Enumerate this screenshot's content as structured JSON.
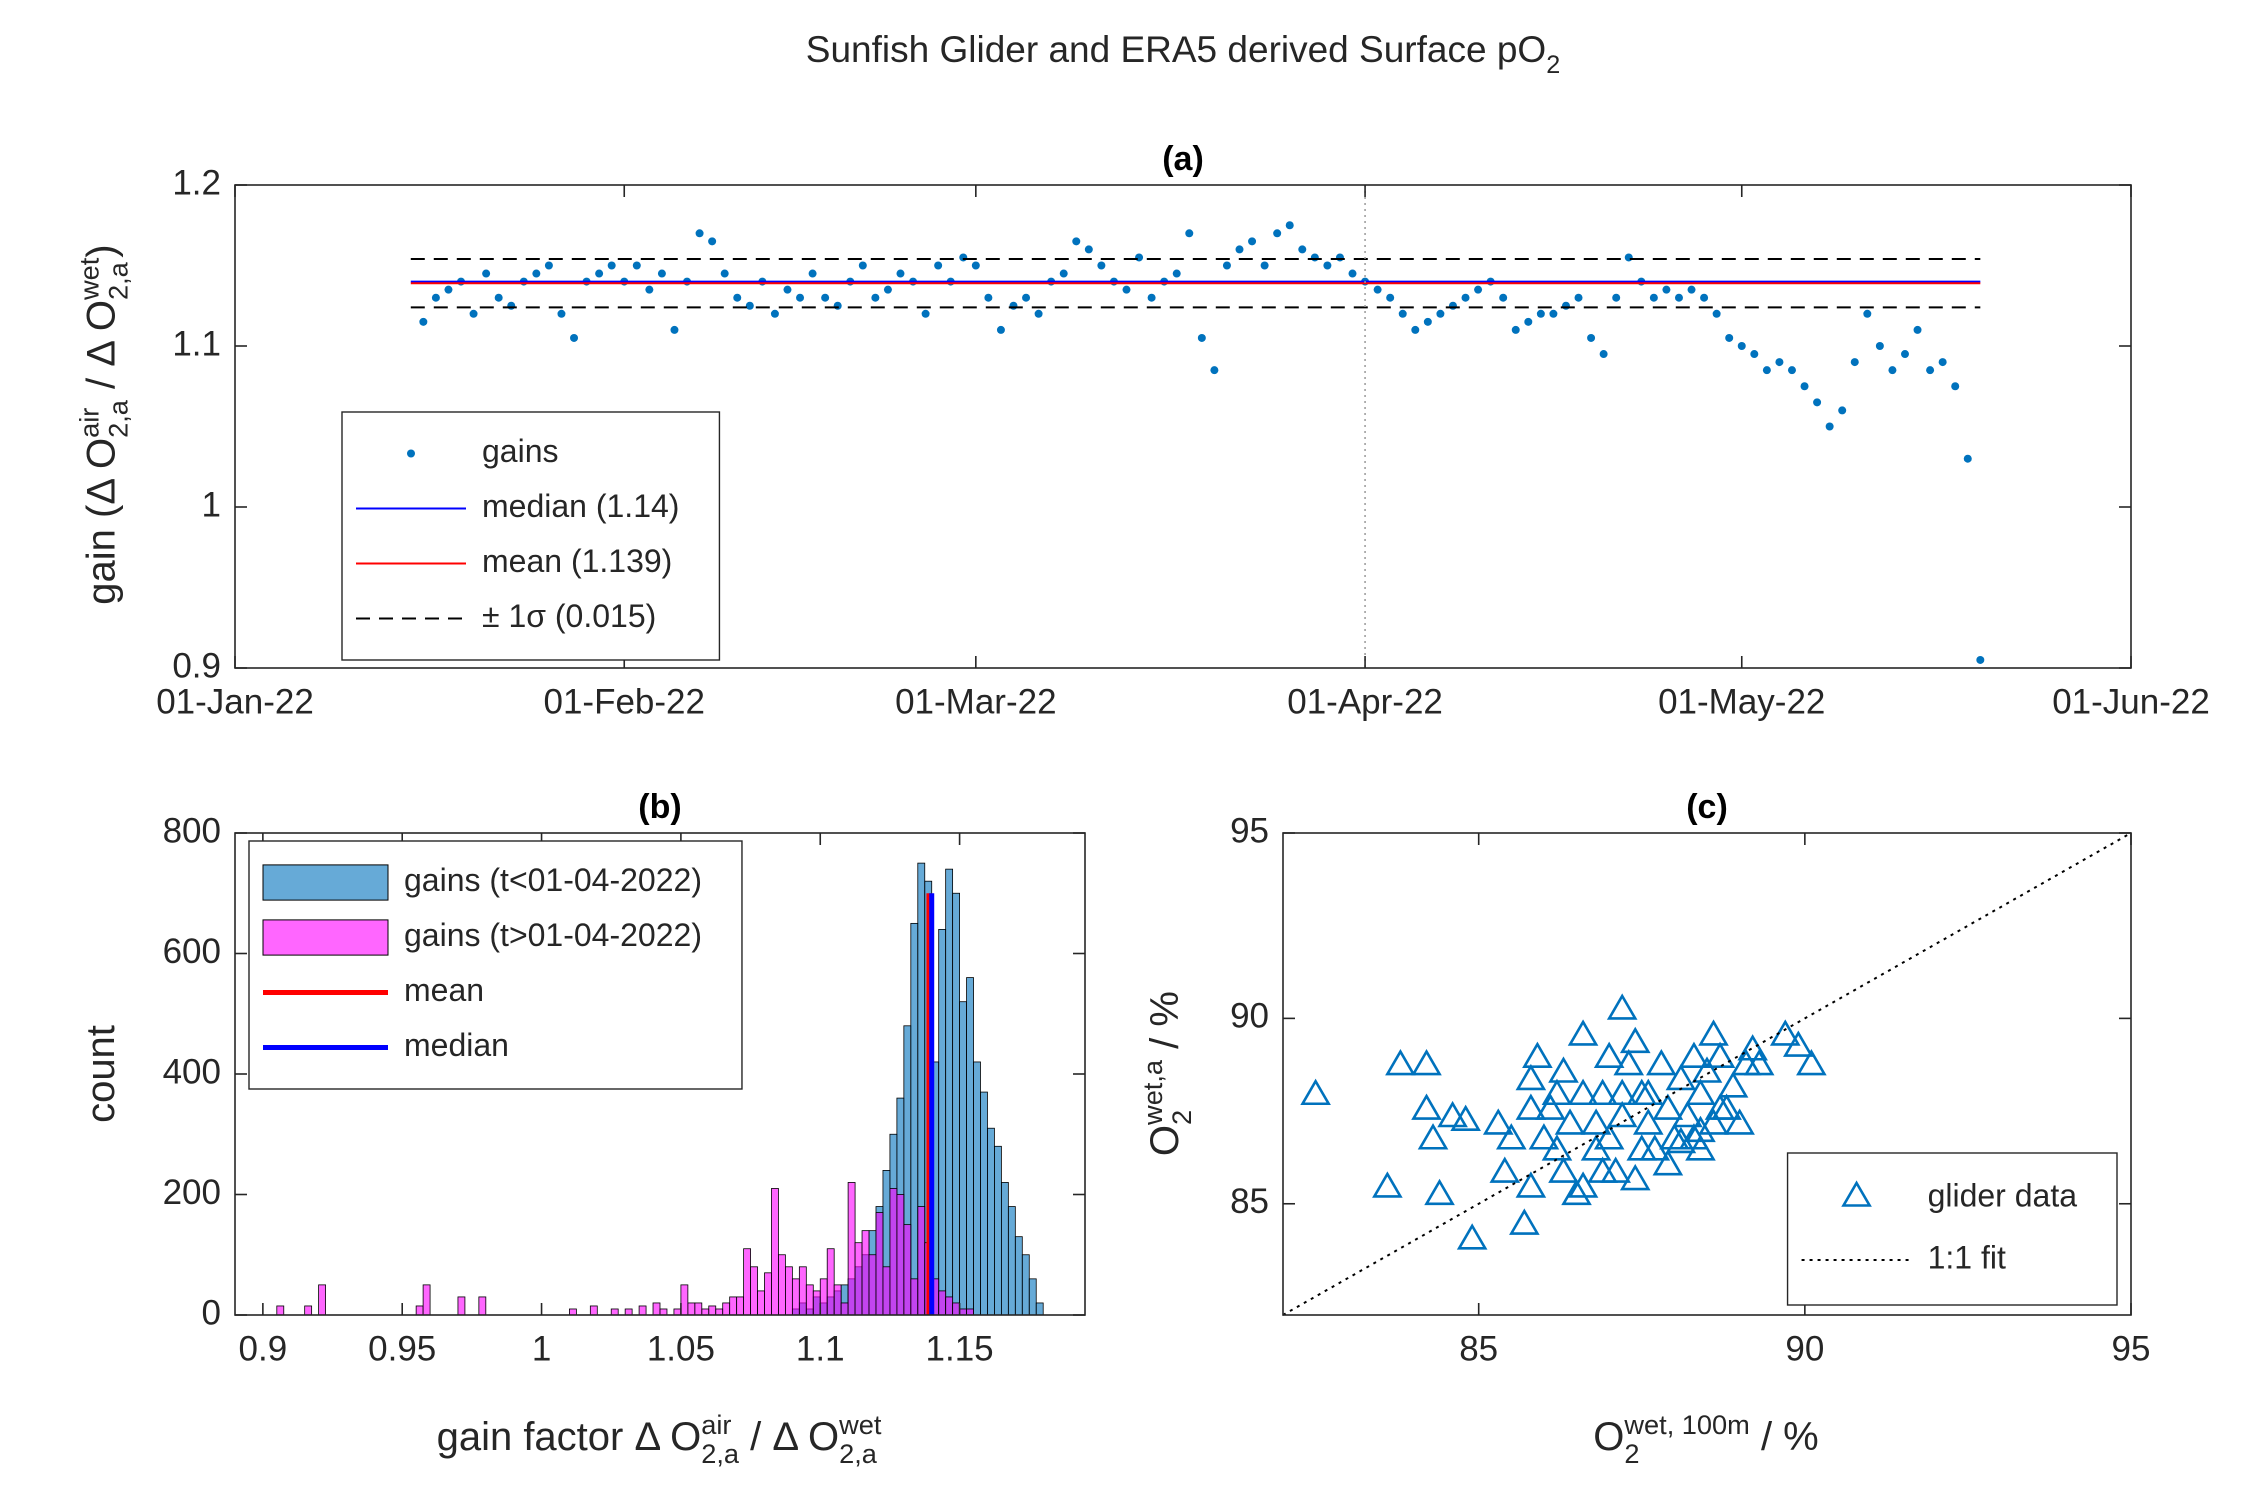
{
  "title": [
    {
      "text": "Sunfish Glider and ERA5 derived Surface pO"
    },
    {
      "sub": "2"
    }
  ],
  "chart_data": [
    {
      "type": "scatter",
      "title": "(a)",
      "ylabel": [
        {
          "text": "gain (Δ O"
        },
        {
          "sup": "air",
          "sub": "2,a"
        },
        {
          "text": " / Δ O"
        },
        {
          "sup": "wet",
          "sub": "2,a"
        },
        {
          "text": ")"
        }
      ],
      "x": [
        "2022-01-16",
        "2022-01-17",
        "2022-01-18",
        "2022-01-19",
        "2022-01-20",
        "2022-01-21",
        "2022-01-22",
        "2022-01-23",
        "2022-01-24",
        "2022-01-25",
        "2022-01-26",
        "2022-01-27",
        "2022-01-28",
        "2022-01-29",
        "2022-01-30",
        "2022-01-31",
        "2022-02-01",
        "2022-02-02",
        "2022-02-03",
        "2022-02-04",
        "2022-02-05",
        "2022-02-06",
        "2022-02-07",
        "2022-02-08",
        "2022-02-09",
        "2022-02-10",
        "2022-02-11",
        "2022-02-12",
        "2022-02-13",
        "2022-02-14",
        "2022-02-15",
        "2022-02-16",
        "2022-02-17",
        "2022-02-18",
        "2022-02-19",
        "2022-02-20",
        "2022-02-21",
        "2022-02-22",
        "2022-02-23",
        "2022-02-24",
        "2022-02-25",
        "2022-02-26",
        "2022-02-27",
        "2022-02-28",
        "2022-03-01",
        "2022-03-02",
        "2022-03-03",
        "2022-03-04",
        "2022-03-05",
        "2022-03-06",
        "2022-03-07",
        "2022-03-08",
        "2022-03-09",
        "2022-03-10",
        "2022-03-11",
        "2022-03-12",
        "2022-03-13",
        "2022-03-14",
        "2022-03-15",
        "2022-03-16",
        "2022-03-17",
        "2022-03-18",
        "2022-03-19",
        "2022-03-20",
        "2022-03-21",
        "2022-03-22",
        "2022-03-23",
        "2022-03-24",
        "2022-03-25",
        "2022-03-26",
        "2022-03-27",
        "2022-03-28",
        "2022-03-29",
        "2022-03-30",
        "2022-03-31",
        "2022-04-01",
        "2022-04-02",
        "2022-04-03",
        "2022-04-04",
        "2022-04-05",
        "2022-04-06",
        "2022-04-07",
        "2022-04-08",
        "2022-04-09",
        "2022-04-10",
        "2022-04-11",
        "2022-04-12",
        "2022-04-13",
        "2022-04-14",
        "2022-04-15",
        "2022-04-16",
        "2022-04-17",
        "2022-04-18",
        "2022-04-19",
        "2022-04-20",
        "2022-04-21",
        "2022-04-22",
        "2022-04-23",
        "2022-04-24",
        "2022-04-25",
        "2022-04-26",
        "2022-04-27",
        "2022-04-28",
        "2022-04-29",
        "2022-04-30",
        "2022-05-01",
        "2022-05-02",
        "2022-05-03",
        "2022-05-04",
        "2022-05-05",
        "2022-05-06",
        "2022-05-07",
        "2022-05-08",
        "2022-05-09",
        "2022-05-10",
        "2022-05-11",
        "2022-05-12",
        "2022-05-13",
        "2022-05-14",
        "2022-05-15",
        "2022-05-16",
        "2022-05-17",
        "2022-05-18",
        "2022-05-19",
        "2022-05-20"
      ],
      "series": [
        {
          "name": "gains",
          "color": "#0072bd",
          "marker": "circle",
          "values": [
            1.115,
            1.13,
            1.135,
            1.14,
            1.12,
            1.145,
            1.13,
            1.125,
            1.14,
            1.145,
            1.15,
            1.12,
            1.105,
            1.14,
            1.145,
            1.15,
            1.14,
            1.15,
            1.135,
            1.145,
            1.11,
            1.14,
            1.17,
            1.165,
            1.145,
            1.13,
            1.125,
            1.14,
            1.12,
            1.135,
            1.13,
            1.145,
            1.13,
            1.125,
            1.14,
            1.15,
            1.13,
            1.135,
            1.145,
            1.14,
            1.12,
            1.15,
            1.14,
            1.155,
            1.15,
            1.13,
            1.11,
            1.125,
            1.13,
            1.12,
            1.14,
            1.145,
            1.165,
            1.16,
            1.15,
            1.14,
            1.135,
            1.155,
            1.13,
            1.14,
            1.145,
            1.17,
            1.105,
            1.085,
            1.15,
            1.16,
            1.165,
            1.15,
            1.17,
            1.175,
            1.16,
            1.155,
            1.15,
            1.155,
            1.145,
            1.14,
            1.135,
            1.13,
            1.12,
            1.11,
            1.115,
            1.12,
            1.125,
            1.13,
            1.135,
            1.14,
            1.13,
            1.11,
            1.115,
            1.12,
            1.12,
            1.125,
            1.13,
            1.105,
            1.095,
            1.13,
            1.155,
            1.14,
            1.13,
            1.135,
            1.13,
            1.135,
            1.13,
            1.12,
            1.105,
            1.1,
            1.095,
            1.085,
            1.09,
            1.085,
            1.075,
            1.065,
            1.05,
            1.06,
            1.09,
            1.12,
            1.1,
            1.085,
            1.095,
            1.11,
            1.085,
            1.09,
            1.075,
            1.03,
            0.905
          ]
        }
      ],
      "reference_lines": [
        {
          "name": "median (1.14)",
          "color": "#0000ff",
          "style": "solid",
          "x": [
            "2022-01-15",
            "2022-05-20"
          ],
          "values": [
            1.14,
            1.14
          ]
        },
        {
          "name": "mean (1.139)",
          "color": "#ff0000",
          "style": "solid",
          "x": [
            "2022-01-15",
            "2022-05-20"
          ],
          "values": [
            1.139,
            1.139
          ]
        },
        {
          "name": "± 1σ (0.015)",
          "color": "#000000",
          "style": "dashed",
          "x": [
            "2022-01-15",
            "2022-05-20"
          ],
          "upper": [
            1.154,
            1.154
          ],
          "lower": [
            1.124,
            1.124
          ]
        }
      ],
      "vline": "2022-04-01",
      "xlim": [
        "2022-01-01",
        "2022-06-01"
      ],
      "xticks": [
        {
          "value": "2022-01-01",
          "label": "01-Jan-22"
        },
        {
          "value": "2022-02-01",
          "label": "01-Feb-22"
        },
        {
          "value": "2022-03-01",
          "label": "01-Mar-22"
        },
        {
          "value": "2022-04-01",
          "label": "01-Apr-22"
        },
        {
          "value": "2022-05-01",
          "label": "01-May-22"
        },
        {
          "value": "2022-06-01",
          "label": "01-Jun-22"
        }
      ],
      "ylim": [
        0.9,
        1.2
      ],
      "yticks": [
        0.9,
        1,
        1.1,
        1.2
      ],
      "legend": "lower left"
    },
    {
      "type": "histogram",
      "title": "(b)",
      "xlabel": [
        {
          "text": "gain factor Δ O"
        },
        {
          "sup": "air",
          "sub": "2,a"
        },
        {
          "text": " / Δ O"
        },
        {
          "sup": "wet",
          "sub": "2,a"
        }
      ],
      "ylabel": "count",
      "bins": [
        0.9,
        0.9025,
        0.905,
        0.9075,
        0.91,
        0.9125,
        0.915,
        0.9175,
        0.92,
        0.9225,
        0.925,
        0.9275,
        0.93,
        0.9325,
        0.935,
        0.9375,
        0.94,
        0.9425,
        0.945,
        0.9475,
        0.95,
        0.9525,
        0.955,
        0.9575,
        0.96,
        0.9625,
        0.965,
        0.9675,
        0.97,
        0.9725,
        0.975,
        0.9775,
        0.98,
        0.9825,
        0.985,
        0.9875,
        0.99,
        0.9925,
        0.995,
        0.9975,
        1,
        1.0025,
        1.005,
        1.0075,
        1.01,
        1.0125,
        1.015,
        1.0175,
        1.02,
        1.0225,
        1.025,
        1.0275,
        1.03,
        1.0325,
        1.035,
        1.0375,
        1.04,
        1.0425,
        1.045,
        1.0475,
        1.05,
        1.0525,
        1.055,
        1.0575,
        1.06,
        1.0625,
        1.065,
        1.0675,
        1.07,
        1.0725,
        1.075,
        1.0775,
        1.08,
        1.0825,
        1.085,
        1.0875,
        1.09,
        1.0925,
        1.095,
        1.0975,
        1.1,
        1.1025,
        1.105,
        1.1075,
        1.11,
        1.1125,
        1.115,
        1.1175,
        1.12,
        1.1225,
        1.125,
        1.1275,
        1.13,
        1.1325,
        1.135,
        1.1375,
        1.14,
        1.1425,
        1.145,
        1.1475,
        1.15,
        1.1525,
        1.155,
        1.1575,
        1.16,
        1.1625,
        1.165,
        1.1675,
        1.17,
        1.1725,
        1.175,
        1.1775,
        1.18
      ],
      "alpha": 0.6,
      "series": [
        {
          "name": "gains (t<01-04-2022)",
          "color": "#0072bd",
          "values": [
            0,
            0,
            0,
            0,
            0,
            0,
            0,
            0,
            0,
            0,
            0,
            0,
            0,
            0,
            0,
            0,
            0,
            0,
            0,
            0,
            0,
            0,
            0,
            0,
            0,
            0,
            0,
            0,
            0,
            0,
            0,
            0,
            0,
            0,
            0,
            0,
            0,
            0,
            0,
            0,
            0,
            0,
            0,
            0,
            0,
            0,
            0,
            0,
            0,
            0,
            0,
            0,
            0,
            0,
            0,
            0,
            0,
            0,
            0,
            0,
            0,
            0,
            0,
            0,
            0,
            0,
            0,
            0,
            0,
            0,
            0,
            0,
            0,
            0,
            0,
            0,
            10,
            20,
            10,
            30,
            20,
            30,
            40,
            50,
            60,
            80,
            100,
            140,
            180,
            240,
            300,
            360,
            480,
            650,
            750,
            720,
            420,
            640,
            740,
            700,
            520,
            560,
            420,
            370,
            310,
            280,
            220,
            180,
            130,
            100,
            60,
            20
          ]
        },
        {
          "name": "gains (t>01-04-2022)",
          "color": "#ff00ff",
          "values": [
            0,
            0,
            15,
            0,
            0,
            0,
            15,
            0,
            50,
            0,
            0,
            0,
            0,
            0,
            0,
            0,
            0,
            0,
            0,
            0,
            0,
            0,
            15,
            50,
            0,
            0,
            0,
            0,
            30,
            0,
            0,
            30,
            0,
            0,
            0,
            0,
            0,
            0,
            0,
            0,
            0,
            0,
            0,
            0,
            10,
            0,
            0,
            15,
            0,
            0,
            10,
            0,
            10,
            0,
            15,
            0,
            20,
            10,
            0,
            10,
            50,
            20,
            20,
            10,
            15,
            10,
            20,
            30,
            30,
            110,
            80,
            40,
            70,
            210,
            100,
            80,
            60,
            80,
            50,
            40,
            60,
            110,
            50,
            20,
            220,
            120,
            140,
            100,
            170,
            80,
            210,
            200,
            150,
            60,
            180,
            120,
            60,
            40,
            30,
            20,
            10,
            10,
            0,
            0,
            0,
            0,
            0,
            0,
            0,
            0,
            0,
            0
          ]
        }
      ],
      "vlines": [
        {
          "name": "mean",
          "color": "#ff0000",
          "x": 1.139,
          "top": 700
        },
        {
          "name": "median",
          "color": "#0000ff",
          "x": 1.14,
          "top": 700
        }
      ],
      "xlim": [
        0.89,
        1.195
      ],
      "xticks": [
        0.9,
        0.95,
        1,
        1.05,
        1.1,
        1.15
      ],
      "ylim": [
        0,
        800
      ],
      "yticks": [
        0,
        200,
        400,
        600,
        800
      ],
      "legend": "upper left"
    },
    {
      "type": "scatter",
      "title": "(c)",
      "xlabel": [
        {
          "text": "O"
        },
        {
          "sup": "wet, 100m",
          "sub": "2"
        },
        {
          "text": " / %"
        }
      ],
      "ylabel": [
        {
          "text": "O"
        },
        {
          "sup": "wet,a",
          "sub": "2"
        },
        {
          "text": " / %"
        }
      ],
      "series": [
        {
          "name": "glider data",
          "color": "#0072bd",
          "marker": "triangle",
          "x": [
            82.5,
            83.6,
            83.8,
            84.2,
            84.2,
            84.4,
            84.3,
            84.9,
            84.8,
            85.3,
            85.5,
            85.4,
            85.7,
            85.8,
            85.8,
            85.9,
            86.1,
            86.2,
            86.3,
            86.4,
            86.5,
            86.6,
            86.6,
            86.8,
            86.9,
            87.0,
            87.2,
            87.2,
            87.3,
            87.4,
            87.5,
            87.5,
            87.6,
            87.8,
            87.9,
            88.0,
            88.1,
            88.2,
            88.3,
            88.4,
            88.5,
            88.6,
            88.7,
            88.7,
            88.9,
            89.0,
            89.1,
            89.2,
            89.3,
            89.7,
            90.1,
            89.9,
            86.6,
            86.8,
            86.9,
            87.1,
            87.4,
            87.7,
            87.9,
            88.1,
            88.4,
            88.6,
            88.8,
            86.2,
            86.0,
            85.8,
            87.2,
            87.6,
            88.3,
            88.4,
            86.3,
            87.0,
            84.6
          ],
          "values": [
            87.9,
            85.4,
            88.7,
            87.5,
            88.7,
            85.2,
            86.7,
            84.0,
            87.2,
            87.1,
            86.7,
            85.8,
            84.4,
            85.4,
            88.3,
            88.9,
            87.5,
            86.4,
            88.5,
            87.1,
            85.2,
            89.5,
            87.9,
            86.4,
            85.8,
            86.7,
            90.2,
            87.3,
            88.7,
            89.3,
            86.4,
            87.9,
            87.1,
            88.7,
            87.5,
            86.7,
            88.3,
            87.3,
            88.9,
            87.9,
            88.5,
            89.5,
            87.5,
            88.9,
            88.1,
            87.1,
            88.7,
            89.1,
            88.7,
            89.5,
            88.7,
            89.2,
            85.4,
            87.1,
            87.9,
            85.8,
            85.6,
            86.4,
            86.0,
            86.6,
            86.9,
            87.1,
            87.5,
            87.9,
            86.7,
            87.5,
            87.9,
            87.9,
            86.7,
            86.4,
            85.8,
            88.9,
            87.3
          ]
        }
      ],
      "reference_lines": [
        {
          "name": "1:1 fit",
          "color": "#000000",
          "style": "dotted",
          "x": [
            82,
            95
          ],
          "values": [
            82,
            95
          ]
        }
      ],
      "xlim": [
        82,
        95
      ],
      "xticks": [
        85,
        90,
        95
      ],
      "ylim": [
        82,
        95
      ],
      "yticks": [
        85,
        90,
        95
      ],
      "legend": "lower right"
    }
  ]
}
